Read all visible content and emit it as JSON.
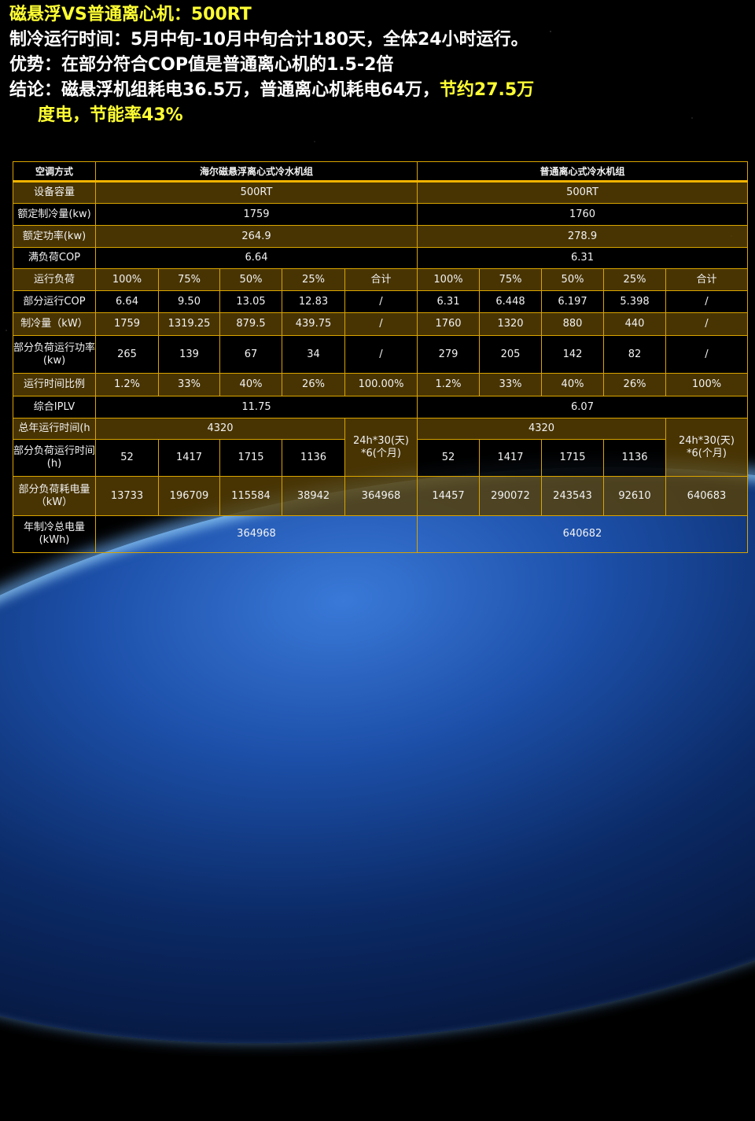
{
  "slide": {
    "line1": "磁悬浮VS普通离心机：500RT",
    "line2": "制冷运行时间：5月中旬-10月中旬合计180天，全体24小时运行。",
    "line3": "优势：在部分符合COP值是普通离心机的1.5-2倍",
    "line4_white": "结论：磁悬浮机组耗电36.5万，普通离心机耗电64万，",
    "line4_yellow": "节约27.5万",
    "line5_yellow_a": "度电，",
    "line5_yellow_b": "节能率43%",
    "colors": {
      "accent_yellow": "#ffff33",
      "border": "#d9a400",
      "row_brown": "#584004"
    }
  },
  "table": {
    "rows": [
      [
        "空调方式",
        "海尔磁悬浮离心式冷水机组",
        "普通离心式冷水机组"
      ],
      [
        "设备容量",
        "500RT",
        "500RT"
      ],
      [
        "额定制冷量(kw)",
        "1759",
        "1760"
      ],
      [
        "额定功率(kw)",
        "264.9",
        "278.9"
      ],
      [
        "满负荷COP",
        "6.64",
        "6.31"
      ],
      [
        "运行负荷",
        "100%",
        "75%",
        "50%",
        "25%",
        "合计",
        "100%",
        "75%",
        "50%",
        "25%",
        "合计"
      ],
      [
        "部分运行COP",
        "6.64",
        "9.50",
        "13.05",
        "12.83",
        "/",
        "6.31",
        "6.448",
        "6.197",
        "5.398",
        "/"
      ],
      [
        "制冷量（kW）",
        "1759",
        "1319.25",
        "879.5",
        "439.75",
        "/",
        "1760",
        "1320",
        "880",
        "440",
        "/"
      ],
      [
        "部分负荷运行功率(kw)",
        "265",
        "139",
        "67",
        "34",
        "/",
        "279",
        "205",
        "142",
        "82",
        "/"
      ],
      [
        "运行时间比例",
        "1.2%",
        "33%",
        "40%",
        "26%",
        "100.00%",
        "1.2%",
        "33%",
        "40%",
        "26%",
        "100%"
      ],
      [
        "综合IPLV",
        "11.75",
        "6.07"
      ],
      [
        "总年运行时间(h",
        "4320",
        "24h*30(天) *6(个月)",
        "4320",
        "24h*30(天) *6(个月)"
      ],
      [
        "部分负荷运行时间(h)",
        "52",
        "1417",
        "1715",
        "1136",
        "52",
        "1417",
        "1715",
        "1136"
      ],
      [
        "部分负荷耗电量（kW）",
        "13733",
        "196709",
        "115584",
        "38942",
        "364968",
        "14457",
        "290072",
        "243543",
        "92610",
        "640683"
      ],
      [
        "年制冷总电量(kWh)",
        "364968",
        "640682"
      ]
    ]
  }
}
